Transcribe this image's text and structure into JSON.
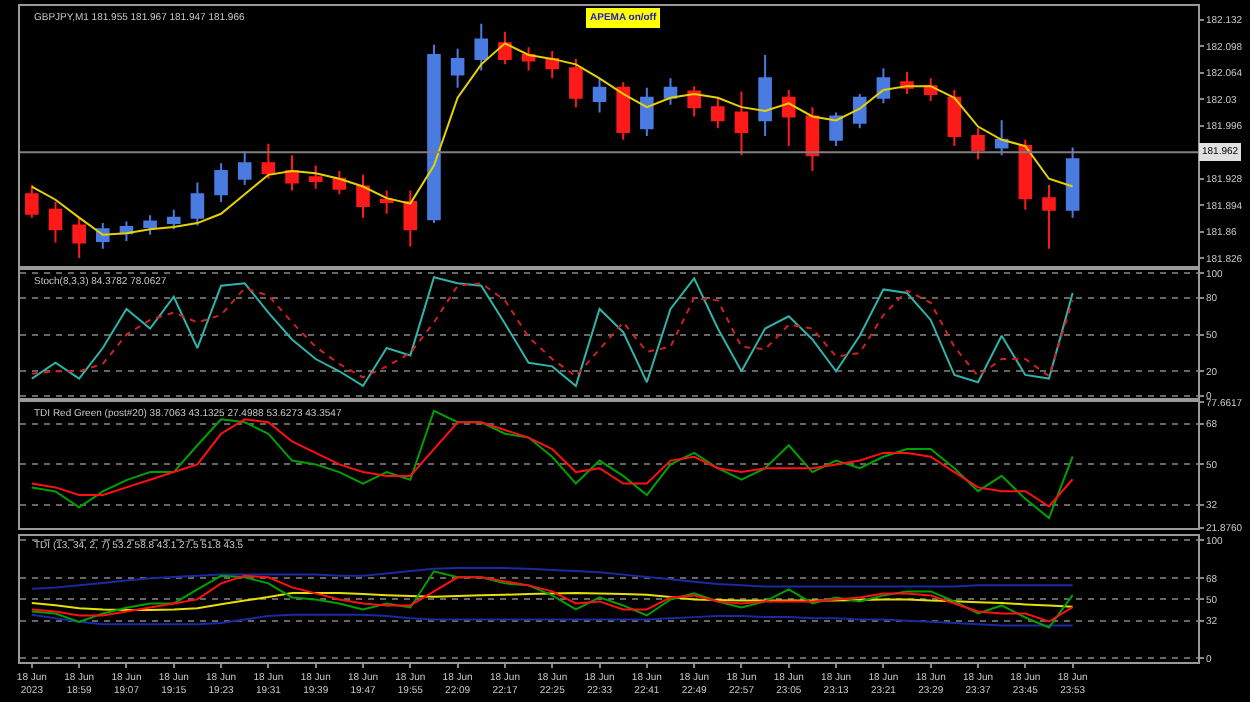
{
  "chart_data": [
    {
      "type": "candlestick",
      "title": "GBPJPY,M1 181.955 181.967 181.947 181.966",
      "annotations": [
        "APEMA on/off"
      ],
      "tick_labels": "y",
      "categories": [
        null,
        null,
        null,
        null,
        null,
        null,
        null,
        null,
        null,
        null,
        null,
        null,
        null,
        null,
        null,
        null,
        null,
        null,
        null,
        null,
        null,
        null,
        null,
        null,
        null,
        null,
        null,
        null,
        null,
        null,
        null,
        null,
        null,
        null,
        null,
        null,
        null,
        null,
        null,
        null,
        null,
        null,
        null,
        null,
        null
      ],
      "ylim": [
        181.816,
        182.15
      ],
      "yticks": [
        182.132,
        182.098,
        182.064,
        182.03,
        181.996,
        181.928,
        181.894,
        181.86,
        181.826
      ],
      "ref_lines": [
        {
          "axis": "y",
          "value": 181.962,
          "label": "181.962",
          "color": "#808080"
        }
      ],
      "ohlc": [
        [
          181.908,
          181.92,
          181.878,
          181.883
        ],
        [
          181.888,
          181.898,
          181.846,
          181.863
        ],
        [
          181.868,
          181.878,
          181.826,
          181.846
        ],
        [
          181.848,
          181.871,
          181.838,
          181.863
        ],
        [
          181.858,
          181.873,
          181.848,
          181.866
        ],
        [
          181.866,
          181.881,
          181.856,
          181.873
        ],
        [
          181.871,
          181.888,
          181.863,
          181.878
        ],
        [
          181.878,
          181.923,
          181.868,
          181.908
        ],
        [
          181.908,
          181.948,
          181.898,
          181.938
        ],
        [
          181.928,
          181.963,
          181.92,
          181.948
        ],
        [
          181.948,
          181.973,
          181.928,
          181.935
        ],
        [
          181.938,
          181.958,
          181.913,
          181.923
        ],
        [
          181.93,
          181.945,
          181.915,
          181.925
        ],
        [
          181.928,
          181.938,
          181.908,
          181.915
        ],
        [
          181.918,
          181.933,
          181.878,
          181.893
        ],
        [
          181.901,
          181.913,
          181.883,
          181.898
        ],
        [
          181.898,
          181.913,
          181.841,
          181.863
        ],
        [
          181.876,
          182.1,
          181.871,
          182.087
        ],
        [
          182.062,
          182.095,
          182.045,
          182.082
        ],
        [
          182.082,
          182.127,
          182.067,
          182.107
        ],
        [
          182.102,
          182.117,
          182.075,
          182.082
        ],
        [
          182.087,
          182.097,
          182.067,
          182.08
        ],
        [
          182.082,
          182.092,
          182.057,
          182.07
        ],
        [
          182.07,
          182.082,
          182.02,
          182.032
        ],
        [
          182.028,
          182.057,
          182.013,
          182.045
        ],
        [
          182.045,
          182.052,
          181.978,
          181.988
        ],
        [
          181.993,
          182.045,
          181.983,
          182.032
        ],
        [
          182.032,
          182.057,
          182.023,
          182.045
        ],
        [
          182.04,
          182.047,
          182.008,
          182.02
        ],
        [
          182.02,
          182.032,
          181.993,
          182.003
        ],
        [
          182.013,
          182.04,
          181.958,
          181.988
        ],
        [
          182.003,
          182.087,
          181.983,
          182.057
        ],
        [
          182.032,
          182.042,
          181.97,
          182.008
        ],
        [
          182.008,
          182.02,
          181.938,
          181.958
        ],
        [
          181.978,
          182.013,
          181.97,
          182.008
        ],
        [
          182.0,
          182.037,
          181.993,
          182.032
        ],
        [
          182.032,
          182.07,
          182.025,
          182.057
        ],
        [
          182.052,
          182.065,
          182.037,
          182.045
        ],
        [
          182.047,
          182.057,
          182.028,
          182.037
        ],
        [
          182.032,
          182.042,
          181.97,
          181.983
        ],
        [
          181.983,
          181.993,
          181.953,
          181.965
        ],
        [
          181.968,
          182.003,
          181.958,
          181.978
        ],
        [
          181.97,
          181.978,
          181.888,
          181.903
        ],
        [
          181.903,
          181.92,
          181.838,
          181.888
        ],
        [
          181.888,
          181.968,
          181.878,
          181.953
        ]
      ],
      "series": [
        {
          "type": "line",
          "color": "#e6d200",
          "values": [
            181.918,
            181.901,
            181.878,
            181.856,
            181.858,
            181.863,
            181.866,
            181.871,
            181.883,
            181.908,
            181.933,
            181.938,
            181.935,
            181.928,
            181.918,
            181.903,
            181.896,
            181.945,
            182.032,
            182.075,
            182.102,
            182.087,
            182.082,
            182.075,
            182.057,
            182.037,
            182.02,
            182.032,
            182.037,
            182.032,
            182.02,
            182.015,
            182.025,
            182.008,
            182.003,
            182.018,
            182.042,
            182.047,
            182.047,
            182.032,
            181.995,
            181.978,
            181.97,
            181.928,
            181.918
          ]
        }
      ]
    },
    {
      "type": "line",
      "title": "Stoch(8,3,3) 84.3782 78.0627",
      "tick_labels": "y",
      "grid": "y",
      "categories": [
        null,
        null,
        null,
        null,
        null,
        null,
        null,
        null,
        null,
        null,
        null,
        null,
        null,
        null,
        null,
        null,
        null,
        null,
        null,
        null,
        null,
        null,
        null,
        null,
        null,
        null,
        null,
        null,
        null,
        null,
        null,
        null,
        null,
        null,
        null,
        null,
        null,
        null,
        null,
        null,
        null,
        null,
        null,
        null,
        null
      ],
      "ylim": [
        -2,
        103
      ],
      "yticks": [
        100,
        80,
        50,
        20,
        0
      ],
      "series": [
        {
          "color": "#2fb3a8",
          "line_style": "solid",
          "values": [
            14,
            27,
            14,
            39,
            71,
            55,
            81,
            39,
            90,
            92,
            68,
            46,
            30,
            20,
            8,
            39,
            33,
            97,
            92,
            90,
            59,
            27,
            24,
            8,
            71,
            52,
            11,
            71,
            96,
            55,
            20,
            55,
            65,
            46,
            20,
            49,
            87,
            84,
            62,
            17,
            11,
            49,
            17,
            14,
            84
          ]
        },
        {
          "color": "#d02020",
          "line_style": "dotted",
          "values": [
            18,
            20,
            20,
            26,
            50,
            62,
            68,
            60,
            66,
            88,
            82,
            60,
            40,
            26,
            15,
            24,
            35,
            60,
            90,
            92,
            78,
            48,
            30,
            16,
            38,
            60,
            36,
            40,
            80,
            78,
            40,
            38,
            58,
            55,
            32,
            35,
            66,
            86,
            76,
            40,
            16,
            30,
            30,
            16,
            78
          ]
        }
      ]
    },
    {
      "type": "line",
      "title": "TDI Red Green (post#20) 38.7063 43.1325 27.4988 53.6273 43.3547",
      "tick_labels": "y",
      "grid": "y",
      "categories": [
        null,
        null,
        null,
        null,
        null,
        null,
        null,
        null,
        null,
        null,
        null,
        null,
        null,
        null,
        null,
        null,
        null,
        null,
        null,
        null,
        null,
        null,
        null,
        null,
        null,
        null,
        null,
        null,
        null,
        null,
        null,
        null,
        null,
        null,
        null,
        null,
        null,
        null,
        null,
        null,
        null,
        null,
        null,
        null,
        null
      ],
      "ylim": [
        21.876,
        77.6617
      ],
      "yticks": [
        77.6617,
        68,
        50,
        32,
        {
          "value": 21.876,
          "label": "21.8760"
        }
      ],
      "series": [
        {
          "color": "#00a000",
          "values": [
            39.8,
            38,
            31,
            38,
            43,
            46.6,
            46.6,
            58.5,
            70,
            68.7,
            63.6,
            51.7,
            50,
            46.6,
            41.5,
            46.6,
            43.2,
            73.8,
            68.7,
            68.7,
            63.6,
            61.9,
            53.4,
            41.5,
            51.7,
            44.9,
            36.4,
            50,
            55.1,
            48.3,
            43.2,
            48.3,
            58.5,
            46.6,
            51.7,
            48.3,
            53.4,
            56.8,
            56.8,
            48.3,
            38.1,
            44.9,
            34.7,
            26.2,
            53.6
          ]
        },
        {
          "color": "#ff1010",
          "values": [
            41.5,
            39.8,
            36.4,
            36.4,
            39.8,
            43.2,
            46.6,
            50,
            63.6,
            70,
            68.7,
            60.2,
            55.1,
            50,
            46.6,
            44.9,
            44.9,
            56.8,
            68.7,
            68.7,
            65.3,
            61.9,
            56.8,
            46.6,
            48.3,
            41.5,
            41.5,
            51.7,
            53.4,
            48.3,
            46.6,
            48.3,
            48.3,
            48.3,
            50,
            51.7,
            55.1,
            55.1,
            53.4,
            46.6,
            39.8,
            38.1,
            38.1,
            31.3,
            43.4
          ]
        }
      ]
    },
    {
      "type": "line",
      "title": "TDI (13, 34, 2, 7) 53.2 58.8 43.1 27.5 51.8 43.5",
      "grid": "y",
      "categories": [
        "18 Jun 2023",
        null,
        "18 Jun 18:59",
        null,
        "18 Jun 19:07",
        null,
        "18 Jun 19:15",
        null,
        "18 Jun 19:23",
        null,
        "18 Jun 19:31",
        null,
        "18 Jun 19:39",
        null,
        "18 Jun 19:47",
        null,
        "18 Jun 19:55",
        null,
        "18 Jun 22:09",
        null,
        "18 Jun 22:17",
        null,
        "18 Jun 22:25",
        null,
        "18 Jun 22:33",
        null,
        "18 Jun 22:41",
        null,
        "18 Jun 22:49",
        null,
        "18 Jun 22:57",
        null,
        "18 Jun 23:05",
        null,
        "18 Jun 23:13",
        null,
        "18 Jun 23:21",
        null,
        "18 Jun 23:29",
        null,
        "18 Jun 23:37",
        null,
        "18 Jun 23:45",
        null,
        "18 Jun 23:53"
      ],
      "ylim": [
        -3,
        104
      ],
      "yticks": [
        100,
        68,
        50,
        32,
        0
      ],
      "series": [
        {
          "color": "#1a2aa0",
          "values": [
            59,
            60,
            62,
            64,
            66,
            68,
            69,
            70,
            71,
            71,
            71,
            71,
            71,
            70,
            70,
            72,
            74,
            76,
            76.5,
            76.5,
            76.5,
            76,
            75,
            74,
            73,
            71,
            69,
            67,
            65,
            63,
            62,
            61,
            61,
            61,
            61,
            61,
            61,
            61,
            61,
            61,
            62,
            62,
            62,
            62,
            62
          ]
        },
        {
          "color": "#1a2aa0",
          "values": [
            37,
            34,
            31,
            29,
            29,
            29,
            29,
            29,
            30,
            33,
            36,
            37,
            37,
            37,
            37,
            36,
            34,
            33,
            33,
            33,
            33,
            33,
            33,
            33,
            33,
            33,
            33,
            34,
            35,
            36,
            36,
            35,
            35,
            34,
            34,
            33,
            33,
            32,
            31,
            30,
            29,
            28,
            28,
            28,
            28
          ]
        },
        {
          "color": "#e6e000",
          "values": [
            47,
            45,
            42.5,
            41.5,
            41,
            41,
            41.5,
            42.5,
            46,
            49,
            52,
            55.5,
            55.5,
            55.5,
            54.5,
            53.6,
            53,
            52.3,
            53,
            53.5,
            54,
            54.5,
            55,
            55.5,
            55,
            54.5,
            54,
            52,
            50,
            49.5,
            49,
            49,
            49,
            49,
            49,
            49.5,
            50,
            50,
            49,
            48.5,
            47.7,
            47,
            45.8,
            44.8,
            43.8
          ]
        },
        {
          "color": "#00a000",
          "values": [
            39.8,
            38,
            31,
            38,
            43,
            46.6,
            46.6,
            58.5,
            70,
            68.7,
            63.6,
            51.7,
            50,
            46.6,
            41.5,
            46.6,
            43.2,
            73.8,
            68.7,
            68.7,
            63.6,
            61.9,
            53.4,
            41.5,
            51.7,
            44.9,
            36.4,
            50,
            55.1,
            48.3,
            43.2,
            48.3,
            58.5,
            46.6,
            51.7,
            48.3,
            53.4,
            56.8,
            56.8,
            48.3,
            38.1,
            44.9,
            34.7,
            26.2,
            53.6
          ]
        },
        {
          "color": "#ff1010",
          "values": [
            41.5,
            39.8,
            36.4,
            36.4,
            39.8,
            43.2,
            46.6,
            50,
            63.6,
            70,
            68.7,
            60.2,
            55.1,
            50,
            46.6,
            44.9,
            44.9,
            56.8,
            68.7,
            68.7,
            65.3,
            61.9,
            56.8,
            46.6,
            48.3,
            41.5,
            41.5,
            51.7,
            53.4,
            48.3,
            46.6,
            48.3,
            48.3,
            48.3,
            50,
            51.7,
            55.1,
            55.1,
            53.4,
            46.6,
            39.8,
            38.1,
            38.1,
            31.3,
            43.4
          ]
        }
      ]
    }
  ]
}
